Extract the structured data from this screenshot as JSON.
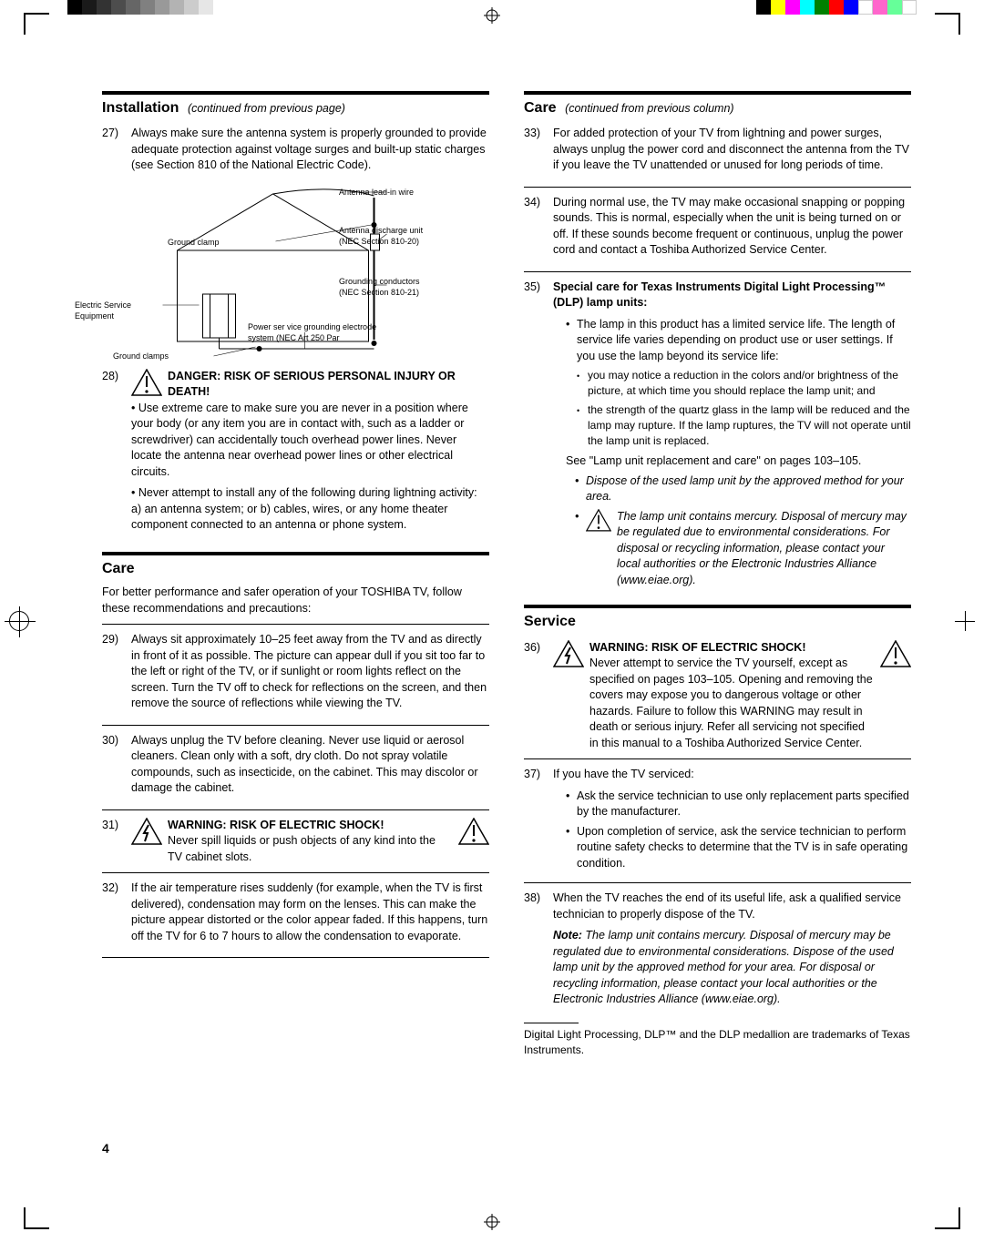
{
  "registration": {
    "gray_levels": [
      "#000000",
      "#1a1a1a",
      "#333333",
      "#4d4d4d",
      "#666666",
      "#808080",
      "#999999",
      "#b3b3b3",
      "#cccccc",
      "#e6e6e6"
    ],
    "color_swatches": [
      "#000000",
      "#ffff00",
      "#ff00ff",
      "#00ffff",
      "#008000",
      "#ff0000",
      "#0000ff",
      "#ffffff",
      "#ff66cc",
      "#66ff99",
      "#ffffff"
    ]
  },
  "left": {
    "install_head": "Installation",
    "install_cont": "(continued from previous page)",
    "i27_num": "27)",
    "i27": "Always make sure the antenna system is properly grounded to provide adequate protection against voltage surges and built-up static charges (see Section 810 of the National Electric Code).",
    "diagram": {
      "lead_in": "Antenna lead-in wire",
      "discharge": "Antenna discharge unit (NEC Section 810-20)",
      "ground_clamp": "Ground clamp",
      "conductors": "Grounding conductors (NEC Section 810-21)",
      "ese": "Electric Service Equipment",
      "clamps2": "Ground clamps",
      "power": "Power ser vice grounding electrode system (NEC Art 250 Par"
    },
    "i28_num": "28)",
    "i28_title": "DANGER: RISK OF SERIOUS PERSONAL INJURY OR DEATH!",
    "i28_p1": "• Use extreme care to make sure you are never in a position where your body (or any item you are in contact with, such as a ladder or screwdriver) can accidentally touch overhead power lines. Never locate the antenna near overhead power lines or other electrical circuits.",
    "i28_p2": "• Never attempt to install any of the following during lightning activity: a) an antenna system; or b) cables, wires, or any home theater component connected to an antenna or phone system.",
    "care_head": "Care",
    "care_intro": "For better performance and safer operation of your TOSHIBA TV, follow these recommendations and precautions:",
    "i29_num": "29)",
    "i29": "Always sit approximately 10–25 feet away from the TV and as directly in front of it as possible. The picture can appear dull if you sit too far to the left or right of the TV, or if sunlight or room lights reflect on the screen. Turn the TV off to check for reflections on the screen, and then remove the source of reflections while viewing the TV.",
    "i30_num": "30)",
    "i30": "Always unplug the TV before cleaning. Never use liquid or aerosol cleaners. Clean only with a soft, dry cloth. Do not spray volatile compounds, such as insecticide, on the cabinet. This may discolor or damage the cabinet.",
    "i31_num": "31)",
    "i31_title": "WARNING: RISK OF ELECTRIC SHOCK!",
    "i31": "Never spill liquids or push objects of any kind into the TV cabinet slots.",
    "i32_num": "32)",
    "i32": "If the air temperature rises suddenly (for example, when the TV is first delivered), condensation may form on the lenses. This can make the picture appear distorted or the color appear faded. If this happens, turn off the TV for 6 to 7 hours to allow the condensation to evaporate."
  },
  "right": {
    "care_head": "Care",
    "care_cont": "(continued from previous column)",
    "i33_num": "33)",
    "i33": "For added protection of your TV from lightning and power surges, always unplug the power cord and disconnect the antenna from the TV if you leave the TV unattended or unused for long periods of time.",
    "i34_num": "34)",
    "i34": "During normal use, the TV may make occasional snapping or popping sounds. This is normal, especially when the unit is being turned on or off. If these sounds become frequent or continuous, unplug the power cord and contact a Toshiba Authorized Service Center.",
    "i35_num": "35)",
    "i35_title": "Special care for Texas Instruments Digital Light Processing™ (DLP) lamp units:",
    "i35_b1": "The lamp in this product has a limited service life. The length of service life varies depending on product use or user settings. If you use the lamp beyond its service life:",
    "i35_sb1": "you may notice a reduction in the colors and/or brightness of the picture, at which time you should replace the lamp unit; and",
    "i35_sb2": "the strength of the quartz glass in the lamp will be reduced and the lamp may rupture. If the lamp ruptures, the TV will not operate until the lamp unit is replaced.",
    "i35_see": "See \"Lamp unit replacement and care\" on pages 103–105.",
    "i35_it1": "Dispose of the used lamp unit by the approved method for your area.",
    "i35_it2": "The lamp unit contains mercury. Disposal of mercury may be regulated due to environmental considerations. For disposal or recycling information, please contact your local authorities or the Electronic Industries Alliance (www.eiae.org).",
    "service_head": "Service",
    "i36_num": "36)",
    "i36_title": "WARNING: RISK OF ELECTRIC SHOCK!",
    "i36": "Never attempt to service the TV yourself, except as specified on pages 103–105. Opening and removing the covers may expose you to dangerous voltage or other hazards. Failure to follow this WARNING may result in death or serious injury. Refer all servicing not specified in this manual to a Toshiba Authorized Service Center.",
    "i37_num": "37)",
    "i37": "If you have the TV serviced:",
    "i37_b1": "Ask the service technician to use only replacement parts specified by the manufacturer.",
    "i37_b2": "Upon completion of service, ask the service technician to perform routine safety checks to determine that the TV is in safe operating condition.",
    "i38_num": "38)",
    "i38": "When the TV reaches the end of its useful life, ask a qualified service technician to properly dispose of the TV.",
    "i38_note_lbl": "Note:",
    "i38_note": " The lamp unit contains mercury. Disposal of mercury may be regulated due to environmental considerations. Dispose of the used lamp unit by the approved method for your area. For disposal or recycling information, please contact your local authorities or the Electronic Industries Alliance (www.eiae.org).",
    "footnote": "Digital Light Processing, DLP™ and the DLP medallion are trademarks of Texas Instruments."
  },
  "page_number": "4"
}
